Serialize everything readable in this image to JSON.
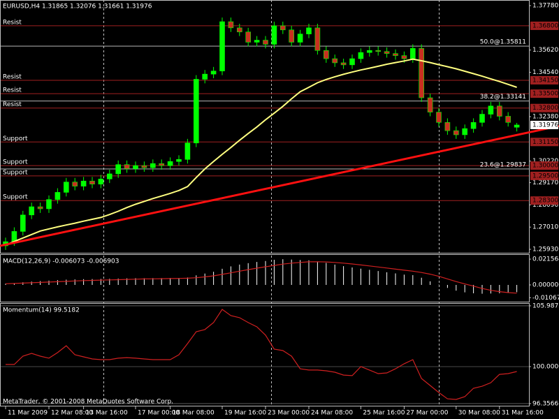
{
  "chart_data": [
    {
      "type": "candlestick",
      "title": "EURUSD,H4  1.31865 1.32076 1.31661 1.31976",
      "footer": "MetaTrader, © 2001-2008 MetaQuotes Software Corp.",
      "categories": [
        "11 Mar 2009",
        null,
        null,
        null,
        null,
        "12 Mar 08:00",
        null,
        null,
        null,
        "13 Mar 16:00",
        null,
        null,
        null,
        null,
        null,
        "17 Mar 00:00",
        null,
        null,
        null,
        "18 Mar 08:00",
        null,
        null,
        null,
        null,
        null,
        "19 Mar 16:00",
        null,
        null,
        null,
        null,
        "23 Mar 00:00",
        null,
        null,
        null,
        null,
        "24 Mar 08:00",
        null,
        null,
        null,
        null,
        null,
        "25 Mar 16:00",
        null,
        null,
        null,
        null,
        "27 Mar 00:00",
        null,
        null,
        null,
        null,
        null,
        "30 Mar 08:00",
        null,
        null,
        null,
        null,
        "31 Mar 16:00",
        null,
        null
      ],
      "open": [
        1.261,
        1.263,
        1.268,
        1.276,
        1.28,
        1.279,
        1.2835,
        1.287,
        1.292,
        1.29,
        1.2925,
        1.291,
        1.2935,
        1.296,
        1.3005,
        1.2985,
        1.3,
        1.299,
        1.301,
        1.3,
        1.302,
        1.303,
        1.311,
        1.342,
        1.3445,
        1.346,
        1.37,
        1.367,
        1.365,
        1.36,
        1.361,
        1.359,
        1.368,
        1.366,
        1.36,
        1.364,
        1.367,
        1.356,
        1.352,
        1.35,
        1.349,
        1.352,
        1.355,
        1.356,
        1.3555,
        1.3545,
        1.3535,
        1.352,
        1.357,
        1.333,
        1.326,
        1.321,
        1.317,
        1.315,
        1.318,
        1.321,
        1.325,
        1.329,
        1.324,
        1.31865
      ],
      "high": [
        1.265,
        1.27,
        1.278,
        1.282,
        1.282,
        1.2855,
        1.289,
        1.294,
        1.294,
        1.2945,
        1.2945,
        1.2955,
        1.298,
        1.3025,
        1.3025,
        1.302,
        1.302,
        1.303,
        1.303,
        1.304,
        1.305,
        1.313,
        1.344,
        1.3465,
        1.348,
        1.372,
        1.372,
        1.369,
        1.367,
        1.363,
        1.363,
        1.37,
        1.37,
        1.368,
        1.366,
        1.369,
        1.369,
        1.358,
        1.354,
        1.352,
        1.354,
        1.357,
        1.358,
        1.358,
        1.3575,
        1.3565,
        1.3555,
        1.359,
        1.359,
        1.335,
        1.328,
        1.323,
        1.319,
        1.32,
        1.323,
        1.327,
        1.331,
        1.331,
        1.326,
        1.32076
      ],
      "low": [
        1.259,
        1.261,
        1.266,
        1.274,
        1.277,
        1.277,
        1.2815,
        1.285,
        1.288,
        1.288,
        1.289,
        1.289,
        1.2915,
        1.294,
        1.2965,
        1.2965,
        1.297,
        1.297,
        1.298,
        1.298,
        1.3,
        1.301,
        1.309,
        1.34,
        1.3425,
        1.344,
        1.365,
        1.363,
        1.358,
        1.358,
        1.357,
        1.357,
        1.364,
        1.358,
        1.358,
        1.362,
        1.354,
        1.35,
        1.348,
        1.347,
        1.347,
        1.35,
        1.353,
        1.3535,
        1.3525,
        1.3515,
        1.35,
        1.35,
        1.331,
        1.324,
        1.319,
        1.315,
        1.313,
        1.313,
        1.316,
        1.319,
        1.323,
        1.322,
        1.319,
        1.31661
      ],
      "close": [
        1.263,
        1.268,
        1.276,
        1.28,
        1.279,
        1.2835,
        1.287,
        1.292,
        1.29,
        1.2925,
        1.291,
        1.2935,
        1.296,
        1.3005,
        1.2985,
        1.3,
        1.299,
        1.301,
        1.3,
        1.302,
        1.303,
        1.311,
        1.342,
        1.3445,
        1.346,
        1.37,
        1.367,
        1.365,
        1.36,
        1.361,
        1.359,
        1.368,
        1.366,
        1.36,
        1.364,
        1.367,
        1.356,
        1.352,
        1.35,
        1.349,
        1.352,
        1.355,
        1.356,
        1.3555,
        1.3545,
        1.3535,
        1.352,
        1.357,
        1.333,
        1.326,
        1.321,
        1.317,
        1.315,
        1.318,
        1.321,
        1.325,
        1.329,
        1.324,
        1.321,
        1.31976
      ],
      "up_color": "#00ff00",
      "down_color": "#c83020",
      "ma": {
        "color": "#ffff80",
        "values": [
          1.2614,
          1.2631,
          1.2648,
          1.2665,
          1.2682,
          1.2692,
          1.2702,
          1.2711,
          1.272,
          1.273,
          1.2739,
          1.2748,
          1.2762,
          1.2778,
          1.2796,
          1.2812,
          1.2826,
          1.284,
          1.2852,
          1.2865,
          1.2879,
          1.2898,
          1.2942,
          1.2984,
          1.302,
          1.3055,
          1.3088,
          1.3123,
          1.3156,
          1.3188,
          1.3223,
          1.3255,
          1.3288,
          1.3325,
          1.3359,
          1.3381,
          1.3403,
          1.3419,
          1.3432,
          1.3444,
          1.3455,
          1.3465,
          1.3474,
          1.3483,
          1.3493,
          1.3501,
          1.3509,
          1.3518,
          1.351,
          1.3501,
          1.3491,
          1.3481,
          1.3471,
          1.3459,
          1.3447,
          1.3435,
          1.3422,
          1.3409,
          1.3395,
          1.3381
        ]
      },
      "trendline": {
        "color": "#ff1010",
        "values": [
          1.261,
          1.3193
        ]
      },
      "ylim": [
        1.2576,
        1.3802
      ],
      "yticks": [
        {
          "value": 1.3778,
          "label": "1.37780"
        },
        {
          "value": 1.3562,
          "label": "1.35620"
        },
        {
          "value": 1.3454,
          "label": "1.34540"
        },
        {
          "value": 1.3238,
          "label": "1.32380"
        },
        {
          "value": 1.3022,
          "label": "1.30220"
        },
        {
          "value": 1.2917,
          "label": "1.29170"
        },
        {
          "value": 1.2809,
          "label": "1.28090"
        },
        {
          "value": 1.2701,
          "label": "1.27010"
        },
        {
          "value": 1.2593,
          "label": "1.25930"
        }
      ],
      "level_color": "#a02020",
      "levels": [
        {
          "value": 1.368,
          "label": "1.36800",
          "text": "Resist"
        },
        {
          "value": 1.3415,
          "label": "1.34150",
          "text": "Resist"
        },
        {
          "value": 1.335,
          "label": "1.33500",
          "text": "Resist"
        },
        {
          "value": 1.328,
          "label": "1.32800",
          "text": "Resist"
        },
        {
          "value": 1.3115,
          "label": "1.31150",
          "text": "Support"
        },
        {
          "value": 1.3,
          "label": "1.30000",
          "text": "Support"
        },
        {
          "value": 1.295,
          "label": "1.29500",
          "text": "Support"
        },
        {
          "value": 1.283,
          "label": "1.28300",
          "text": "Support"
        }
      ],
      "fibs": [
        {
          "value": 1.35811,
          "label": "50.0@1.35811"
        },
        {
          "value": 1.33141,
          "label": "38.2@1.33141"
        },
        {
          "value": 1.29837,
          "label": "23.6@1.29837"
        }
      ],
      "current": 1.31976
    },
    {
      "type": "macd",
      "title": "MACD(12,26,9) -0.006073 -0.006903",
      "ylim": [
        -0.0146,
        0.0251
      ],
      "yticks": [
        0.021564,
        {
          "value": 0,
          "label": "0.000000"
        },
        -0.01067
      ],
      "series": [
        {
          "name": "MACD",
          "color": "#ffffff",
          "values": [
            0.001,
            0.0015,
            0.0022,
            0.0028,
            0.0032,
            0.0036,
            0.004,
            0.0044,
            0.0046,
            0.0048,
            0.0049,
            0.005,
            0.0051,
            0.0053,
            0.0055,
            0.0056,
            0.0056,
            0.0057,
            0.0057,
            0.0058,
            0.0058,
            0.0062,
            0.008,
            0.0095,
            0.011,
            0.0135,
            0.0155,
            0.017,
            0.0182,
            0.0192,
            0.02,
            0.021,
            0.0215,
            0.0212,
            0.0208,
            0.0206,
            0.0196,
            0.0184,
            0.017,
            0.0157,
            0.0146,
            0.0136,
            0.0126,
            0.0116,
            0.0106,
            0.0096,
            0.0086,
            0.0082,
            0.006,
            0.003,
            0.0002,
            -0.0025,
            -0.0048,
            -0.0062,
            -0.007,
            -0.0074,
            -0.0072,
            -0.007,
            -0.0066,
            -0.006073
          ]
        },
        {
          "name": "Signal",
          "color": "#d02020",
          "values": [
            0.001,
            0.0012,
            0.0015,
            0.0018,
            0.0021,
            0.0024,
            0.0027,
            0.003,
            0.0033,
            0.0036,
            0.0038,
            0.004,
            0.0042,
            0.0044,
            0.0046,
            0.0048,
            0.005,
            0.0051,
            0.0052,
            0.0053,
            0.0054,
            0.0056,
            0.006,
            0.0067,
            0.0076,
            0.0088,
            0.0101,
            0.0115,
            0.0128,
            0.014,
            0.0152,
            0.0163,
            0.0174,
            0.0182,
            0.0188,
            0.0193,
            0.0194,
            0.0192,
            0.0188,
            0.0182,
            0.0175,
            0.0167,
            0.0159,
            0.015,
            0.0141,
            0.0132,
            0.0123,
            0.0115,
            0.0104,
            0.009,
            0.0072,
            0.005,
            0.0028,
            0.0008,
            -0.001,
            -0.003,
            -0.0045,
            -0.0056,
            -0.0064,
            -0.006903
          ]
        }
      ]
    },
    {
      "type": "line",
      "title": "Momentum(14) 99.5182",
      "ylim": [
        96.08,
        106.19
      ],
      "yticks": [
        105.9875,
        {
          "value": 100,
          "label": "100.0000"
        },
        96.3566
      ],
      "series": [
        {
          "name": "Momentum",
          "color": "#d02020",
          "values": [
            100.21,
            100.21,
            101.03,
            101.31,
            101.03,
            100.83,
            101.38,
            102.06,
            101.17,
            100.96,
            100.76,
            100.69,
            100.69,
            100.83,
            100.89,
            100.83,
            100.76,
            100.69,
            100.69,
            100.69,
            101.17,
            102.27,
            103.44,
            103.65,
            104.34,
            105.64,
            105.02,
            104.82,
            104.34,
            103.92,
            103.1,
            101.72,
            101.58,
            101.03,
            99.79,
            99.66,
            99.66,
            99.59,
            99.45,
            99.17,
            99.11,
            100.0,
            99.66,
            99.31,
            99.38,
            99.79,
            100.28,
            100.69,
            98.83,
            98.14,
            97.45,
            96.83,
            96.77,
            97.04,
            97.87,
            98.07,
            98.42,
            99.24,
            99.31,
            99.5182
          ]
        }
      ]
    }
  ]
}
